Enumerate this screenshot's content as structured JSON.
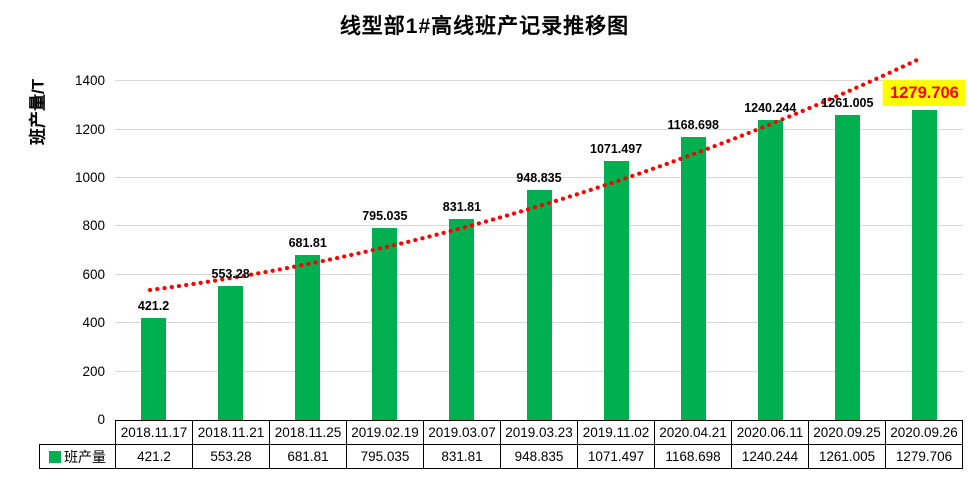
{
  "chart_data": {
    "type": "bar",
    "title": "线型部1#高线班产记录推移图",
    "ylabel": "班产量/T",
    "xlabel": "",
    "categories": [
      "2018.11.17",
      "2018.11.21",
      "2018.11.25",
      "2019.02.19",
      "2019.03.07",
      "2019.03.23",
      "2019.11.02",
      "2020.04.21",
      "2020.06.11",
      "2020.09.25",
      "2020.09.26"
    ],
    "series": [
      {
        "name": "班产量",
        "color": "#00B050",
        "values": [
          421.2,
          553.28,
          681.81,
          795.035,
          831.81,
          948.835,
          1071.497,
          1168.698,
          1240.244,
          1261.005,
          1279.706
        ]
      }
    ],
    "ylim": [
      0,
      1500
    ],
    "yticks": [
      0,
      200,
      400,
      600,
      800,
      1000,
      1200,
      1400
    ],
    "grid": true,
    "gridline_color": "#D9D9D9",
    "legend_position": "data-table-left",
    "data_labels": true,
    "trendline": {
      "style": "dotted",
      "color": "#FF0000"
    },
    "highlight": {
      "index": 10,
      "bg": "#FFFF00",
      "text_color": "#FF0000"
    }
  },
  "table": {
    "legend_label": "班产量",
    "border_color": "#000000"
  }
}
